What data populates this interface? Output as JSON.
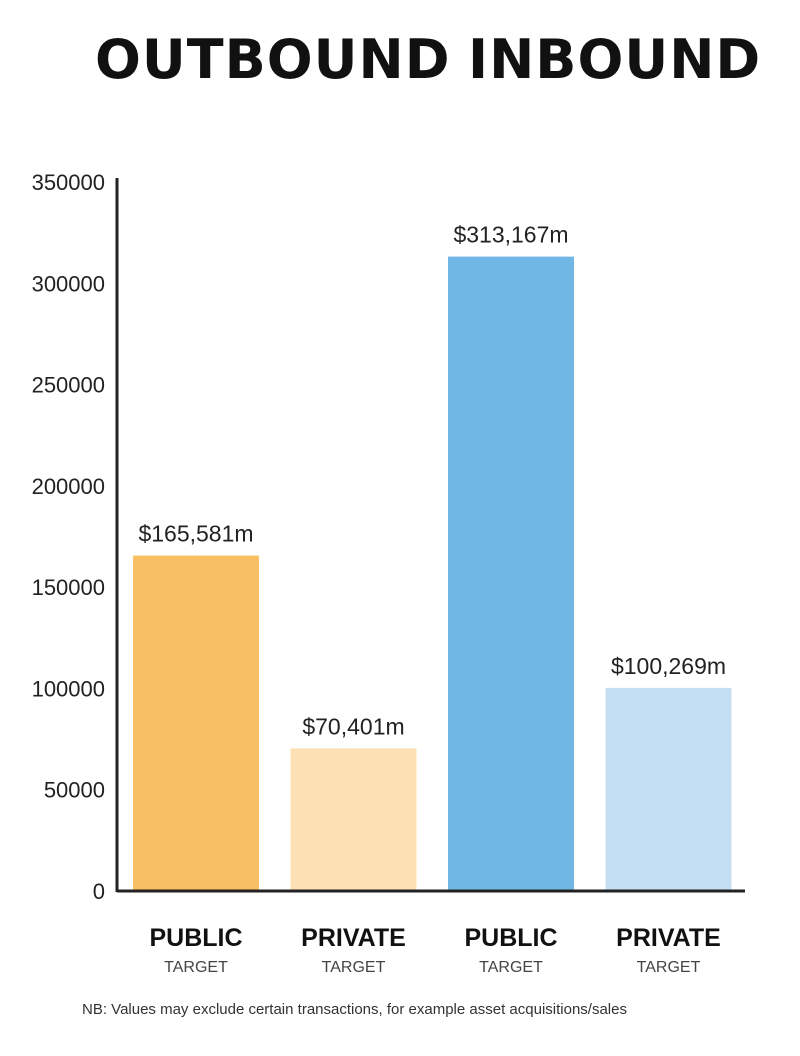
{
  "headings": {
    "outbound": "OUTBOUND",
    "inbound": "INBOUND"
  },
  "note": "NB: Values may exclude certain transactions, for example asset acquisitions/sales",
  "chart_data": {
    "type": "bar",
    "ylim": [
      0,
      350000
    ],
    "yticks": [
      0,
      50000,
      100000,
      150000,
      200000,
      250000,
      300000,
      350000
    ],
    "grid": false,
    "bars": [
      {
        "group": "OUTBOUND",
        "label": "PUBLIC",
        "sublabel": "TARGET",
        "value": 165581,
        "value_label": "$165,581m",
        "color": "#f9bf63"
      },
      {
        "group": "OUTBOUND",
        "label": "PRIVATE",
        "sublabel": "TARGET",
        "value": 70401,
        "value_label": "$70,401m",
        "color": "#fde0b3"
      },
      {
        "group": "INBOUND",
        "label": "PUBLIC",
        "sublabel": "TARGET",
        "value": 313167,
        "value_label": "$313,167m",
        "color": "#71b7e6"
      },
      {
        "group": "INBOUND",
        "label": "PRIVATE",
        "sublabel": "TARGET",
        "value": 100269,
        "value_label": "$100,269m",
        "color": "#c4dff4"
      }
    ]
  }
}
